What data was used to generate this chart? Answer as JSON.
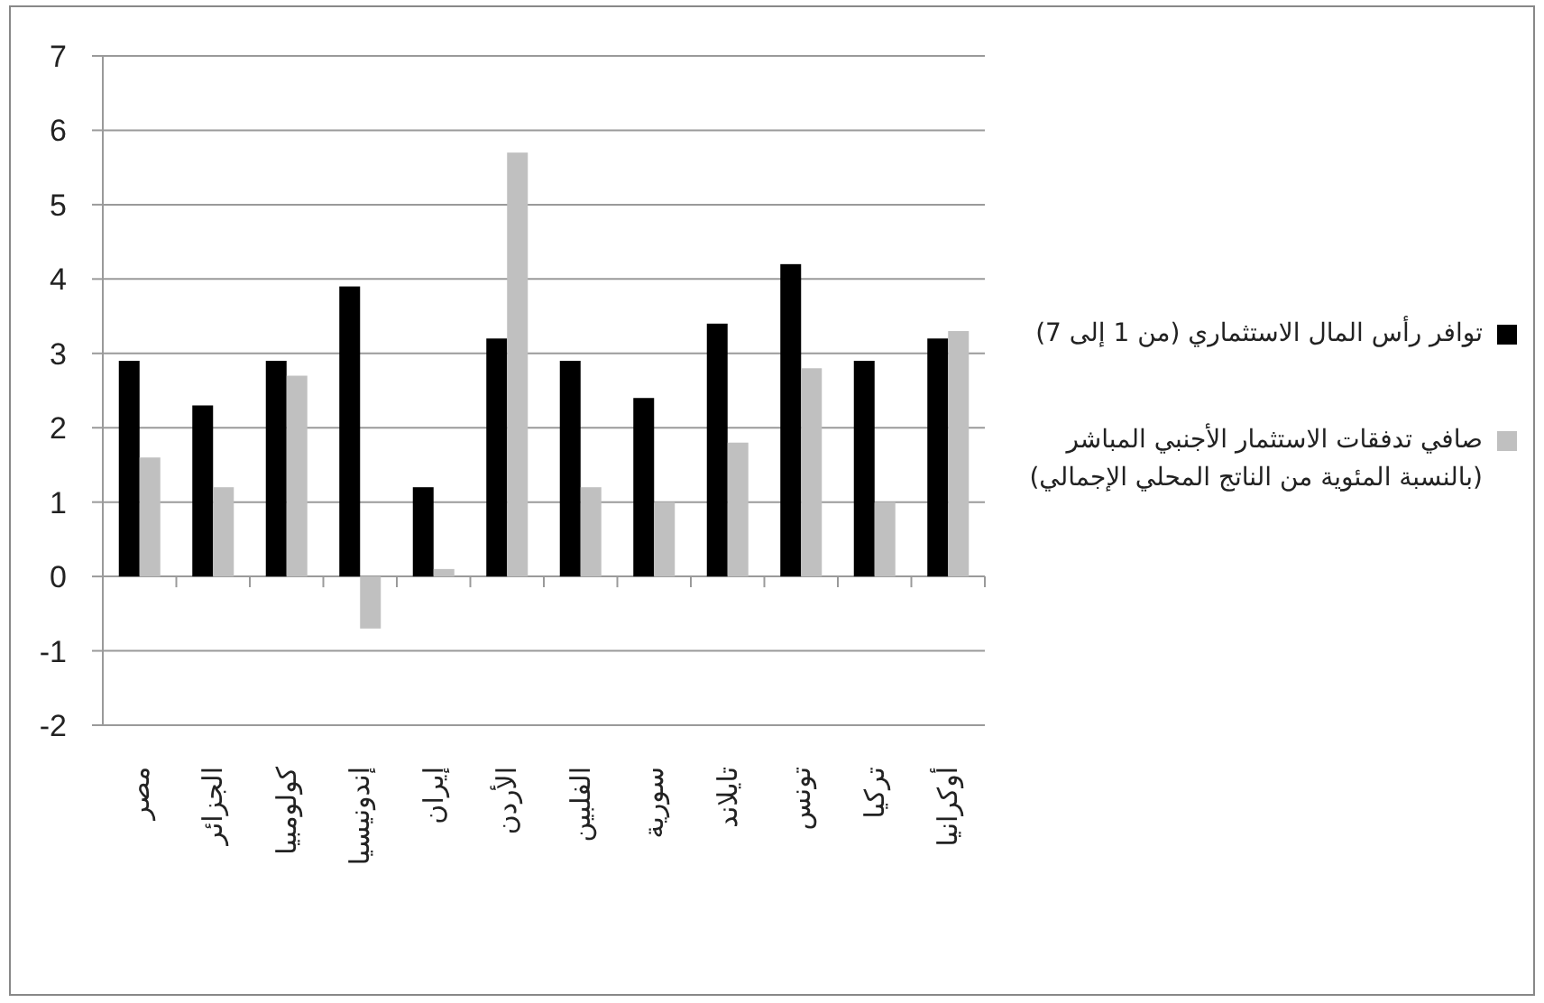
{
  "chart_data": {
    "type": "bar",
    "categories": [
      "مصر",
      "الجزائر",
      "كولومبيا",
      "إندونيسيا",
      "إيران",
      "الأردن",
      "الفلبين",
      "سورية",
      "تايلاند",
      "تونس",
      "تركيا",
      "أوكرانيا"
    ],
    "series": [
      {
        "name": "توافر رأس المال الاستثماري (من 1 إلى 7)",
        "color": "#000000",
        "values": [
          2.9,
          2.3,
          2.9,
          3.9,
          1.2,
          3.2,
          2.9,
          2.4,
          3.4,
          4.2,
          2.9,
          3.2
        ]
      },
      {
        "name": "صافي تدفقات الاستثمار الأجنبي المباشر (بالنسبة المئوية من الناتج المحلي الإجمالي)",
        "color": "#c0c0c0",
        "values": [
          1.6,
          1.2,
          2.7,
          -0.7,
          0.1,
          5.7,
          1.2,
          1.0,
          1.8,
          2.8,
          1.0,
          3.3
        ]
      }
    ],
    "ylim": [
      -2,
      7
    ],
    "yticks": [
      -2,
      -1,
      0,
      1,
      2,
      3,
      4,
      5,
      6,
      7
    ],
    "grid": "y",
    "legend": "right"
  }
}
